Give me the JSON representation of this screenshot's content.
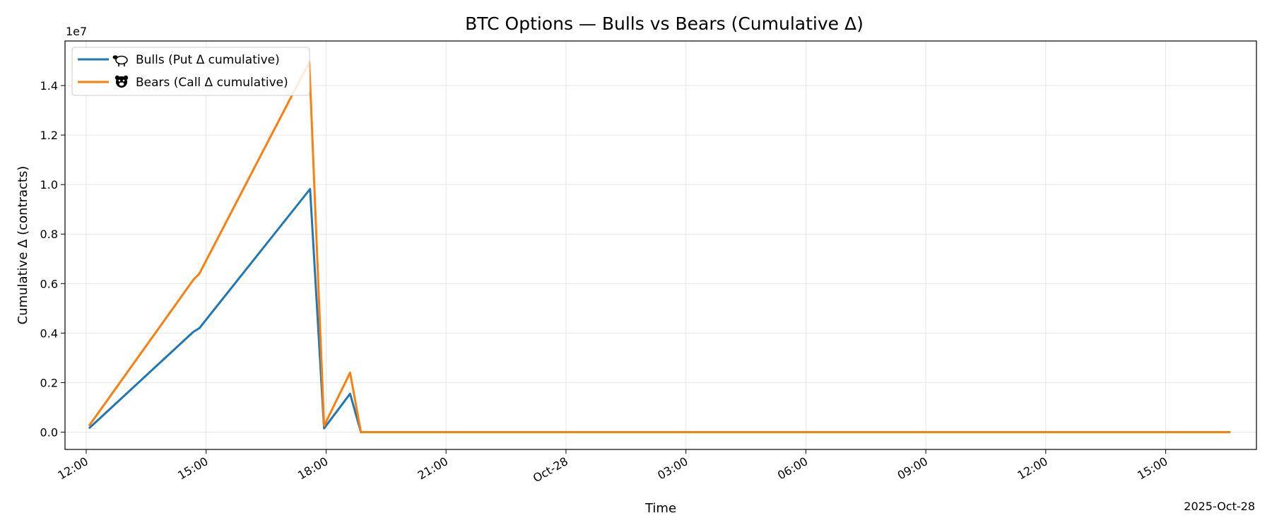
{
  "chart_data": {
    "type": "line",
    "title": "BTC Options — Bulls vs Bears (Cumulative Δ)",
    "xlabel": "Time",
    "ylabel": "Cumulative Δ (contracts)",
    "y_offset_label": "1e7",
    "x_offset_label": "2025-Oct-28",
    "x_unit": "hours relative to 2025-10-28 00:00",
    "xlim": [
      -12.53,
      17.27
    ],
    "ylim": [
      -0.7,
      15.8
    ],
    "y_scale_note": "y values in units of 1e6 contracts (axis multiplier 1e7)",
    "x_ticks": [
      {
        "x": -12,
        "label": "12:00"
      },
      {
        "x": -9,
        "label": "15:00"
      },
      {
        "x": -6,
        "label": "18:00"
      },
      {
        "x": -3,
        "label": "21:00"
      },
      {
        "x": 0,
        "label": "Oct-28"
      },
      {
        "x": 3,
        "label": "03:00"
      },
      {
        "x": 6,
        "label": "06:00"
      },
      {
        "x": 9,
        "label": "09:00"
      },
      {
        "x": 12,
        "label": "12:00"
      },
      {
        "x": 15,
        "label": "15:00"
      }
    ],
    "y_ticks": [
      {
        "y": 0,
        "label": "0.0"
      },
      {
        "y": 2,
        "label": "0.2"
      },
      {
        "y": 4,
        "label": "0.4"
      },
      {
        "y": 6,
        "label": "0.6"
      },
      {
        "y": 8,
        "label": "0.8"
      },
      {
        "y": 10,
        "label": "1.0"
      },
      {
        "y": 12,
        "label": "1.2"
      },
      {
        "y": 14,
        "label": "1.4"
      }
    ],
    "grid": true,
    "legend_position": "top-left",
    "series": [
      {
        "name": "Bulls (Put Δ cumulative)",
        "icon": "sheep-icon",
        "color": "#1f77b4",
        "points": [
          [
            -11.93,
            0.15
          ],
          [
            -9.32,
            4.05
          ],
          [
            -9.17,
            4.2
          ],
          [
            -6.4,
            9.82
          ],
          [
            -6.05,
            0.15
          ],
          [
            -5.4,
            1.55
          ],
          [
            -5.13,
            0.0
          ],
          [
            0.0,
            0.0
          ],
          [
            16.62,
            0.0
          ]
        ]
      },
      {
        "name": "Bears (Call Δ cumulative)",
        "icon": "bear-icon",
        "color": "#ff7f0e",
        "points": [
          [
            -11.93,
            0.25
          ],
          [
            -9.32,
            6.15
          ],
          [
            -9.17,
            6.4
          ],
          [
            -6.42,
            14.95
          ],
          [
            -6.05,
            0.25
          ],
          [
            -5.4,
            2.4
          ],
          [
            -5.13,
            0.0
          ],
          [
            0.0,
            0.0
          ],
          [
            16.62,
            0.0
          ]
        ]
      }
    ]
  }
}
